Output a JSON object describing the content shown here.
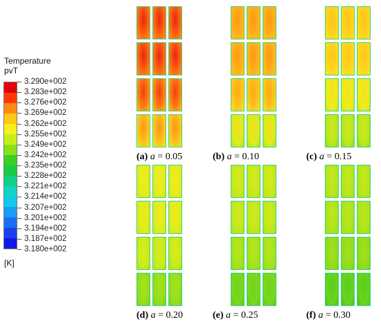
{
  "legend": {
    "title": "Temperature",
    "subtitle": "pvT",
    "unit": "[K]",
    "ticks": [
      "3.290e+002",
      "3.283e+002",
      "3.276e+002",
      "3.269e+002",
      "3.262e+002",
      "3.255e+002",
      "3.249e+002",
      "3.242e+002",
      "3.235e+002",
      "3.228e+002",
      "3.221e+002",
      "3.214e+002",
      "3.207e+002",
      "3.201e+002",
      "3.194e+002",
      "3.187e+002",
      "3.180e+002"
    ],
    "colors": [
      "#e4000c",
      "#ff3a08",
      "#ff8a10",
      "#ffc816",
      "#f6ef1a",
      "#c8ee18",
      "#8ae01c",
      "#3ad21e",
      "#19cc46",
      "#12d084",
      "#10d6c2",
      "#12c8ee",
      "#1a9cf2",
      "#1c6ef2",
      "#1c40ee",
      "#1218e6"
    ]
  },
  "panels": [
    {
      "tag": "(a)",
      "var": "a",
      "eq": " = 0.05",
      "rows": [
        {
          "center": "#e92512",
          "edge": "#ff6a12",
          "bottom": "#ff8c18"
        },
        {
          "center": "#e92512",
          "edge": "#ff6a12",
          "bottom": "#ff8c18"
        },
        {
          "center": "#f23e12",
          "edge": "#ff8414",
          "bottom": "#ffb21a"
        },
        {
          "center": "#ff9418",
          "edge": "#ffc41c",
          "bottom": "#dcec1c"
        }
      ]
    },
    {
      "tag": "(b)",
      "var": "a",
      "eq": " = 0.10",
      "rows": [
        {
          "center": "#ff9416",
          "edge": "#ffb41a",
          "bottom": "#ffc01a"
        },
        {
          "center": "#ff9616",
          "edge": "#ffb61a",
          "bottom": "#ffc21a"
        },
        {
          "center": "#ffa818",
          "edge": "#ffc61c",
          "bottom": "#f2e41c"
        },
        {
          "center": "#f0e01a",
          "edge": "#dcec1c",
          "bottom": "#b8e61c"
        }
      ]
    },
    {
      "tag": "(c)",
      "var": "a",
      "eq": " = 0.15",
      "rows": [
        {
          "center": "#ffc21a",
          "edge": "#ffd41c",
          "bottom": "#f4e61c"
        },
        {
          "center": "#ffc41a",
          "edge": "#ffd61c",
          "bottom": "#f4e81c"
        },
        {
          "center": "#f6e01c",
          "edge": "#ecec1c",
          "bottom": "#cdea1c"
        },
        {
          "center": "#cdea1c",
          "edge": "#bce61c",
          "bottom": "#9ce01c"
        }
      ]
    },
    {
      "tag": "(d)",
      "var": "a",
      "eq": " = 0.20",
      "rows": [
        {
          "center": "#f2ec1c",
          "edge": "#e4ec1c",
          "bottom": "#d6ea1c"
        },
        {
          "center": "#eeec1c",
          "edge": "#e0ec1c",
          "bottom": "#d0ea1c"
        },
        {
          "center": "#d8ec1c",
          "edge": "#ccea1c",
          "bottom": "#b4e61c"
        },
        {
          "center": "#a6e21c",
          "edge": "#98de1c",
          "bottom": "#7cd81c"
        }
      ]
    },
    {
      "tag": "(e)",
      "var": "a",
      "eq": " = 0.25",
      "rows": [
        {
          "center": "#d6ea1c",
          "edge": "#c8e81c",
          "bottom": "#b6e61c"
        },
        {
          "center": "#d0ea1c",
          "edge": "#c2e81c",
          "bottom": "#b0e41c"
        },
        {
          "center": "#b8e61c",
          "edge": "#a8e21c",
          "bottom": "#94de1c"
        },
        {
          "center": "#6ad41c",
          "edge": "#7ed81c",
          "bottom": "#5ed01c"
        }
      ]
    },
    {
      "tag": "(f)",
      "var": "a",
      "eq": " = 0.30",
      "rows": [
        {
          "center": "#c4e81c",
          "edge": "#b6e61c",
          "bottom": "#a8e21c"
        },
        {
          "center": "#bce81c",
          "edge": "#aee41c",
          "bottom": "#a0e01c"
        },
        {
          "center": "#a2e01c",
          "edge": "#94dc1c",
          "bottom": "#84da1c"
        },
        {
          "center": "#56cf1c",
          "edge": "#6ad41c",
          "bottom": "#4ccc1e"
        }
      ]
    }
  ]
}
